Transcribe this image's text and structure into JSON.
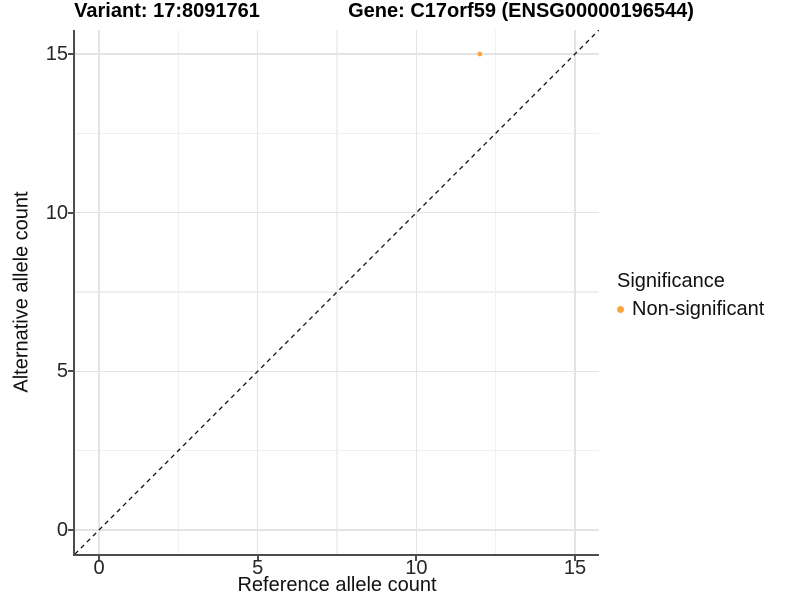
{
  "chart_data": {
    "type": "scatter",
    "title_left": "Variant: 17:8091761",
    "title_right": "Gene: C17orf59 (ENSG00000196544)",
    "xlabel": "Reference allele count",
    "ylabel": "Alternative allele count",
    "xlim": [
      -0.76,
      15.76
    ],
    "ylim": [
      -0.76,
      15.76
    ],
    "x_ticks": [
      0,
      5,
      10,
      15
    ],
    "y_ticks": [
      0,
      5,
      10,
      15
    ],
    "x_minor_ticks": [
      2.5,
      7.5,
      12.5
    ],
    "y_minor_ticks": [
      2.5,
      7.5,
      12.5
    ],
    "grid": true,
    "points": [
      {
        "x": 12,
        "y": 15,
        "series": "Non-significant"
      }
    ],
    "reference_line": {
      "kind": "identity",
      "linestyle": "dashed",
      "color": "#000000"
    },
    "legend_position": "right"
  },
  "legend": {
    "title": "Significance",
    "items": [
      {
        "label": "Non-significant",
        "color": "#FAA43B"
      }
    ]
  },
  "colors": {
    "axis_line": "#4d4d4d",
    "grid_major": "#e4e4e4",
    "grid_minor": "#f0f0f0",
    "tick_label": "#262626",
    "point": "#FAA43B",
    "reference_line": "#111111"
  }
}
